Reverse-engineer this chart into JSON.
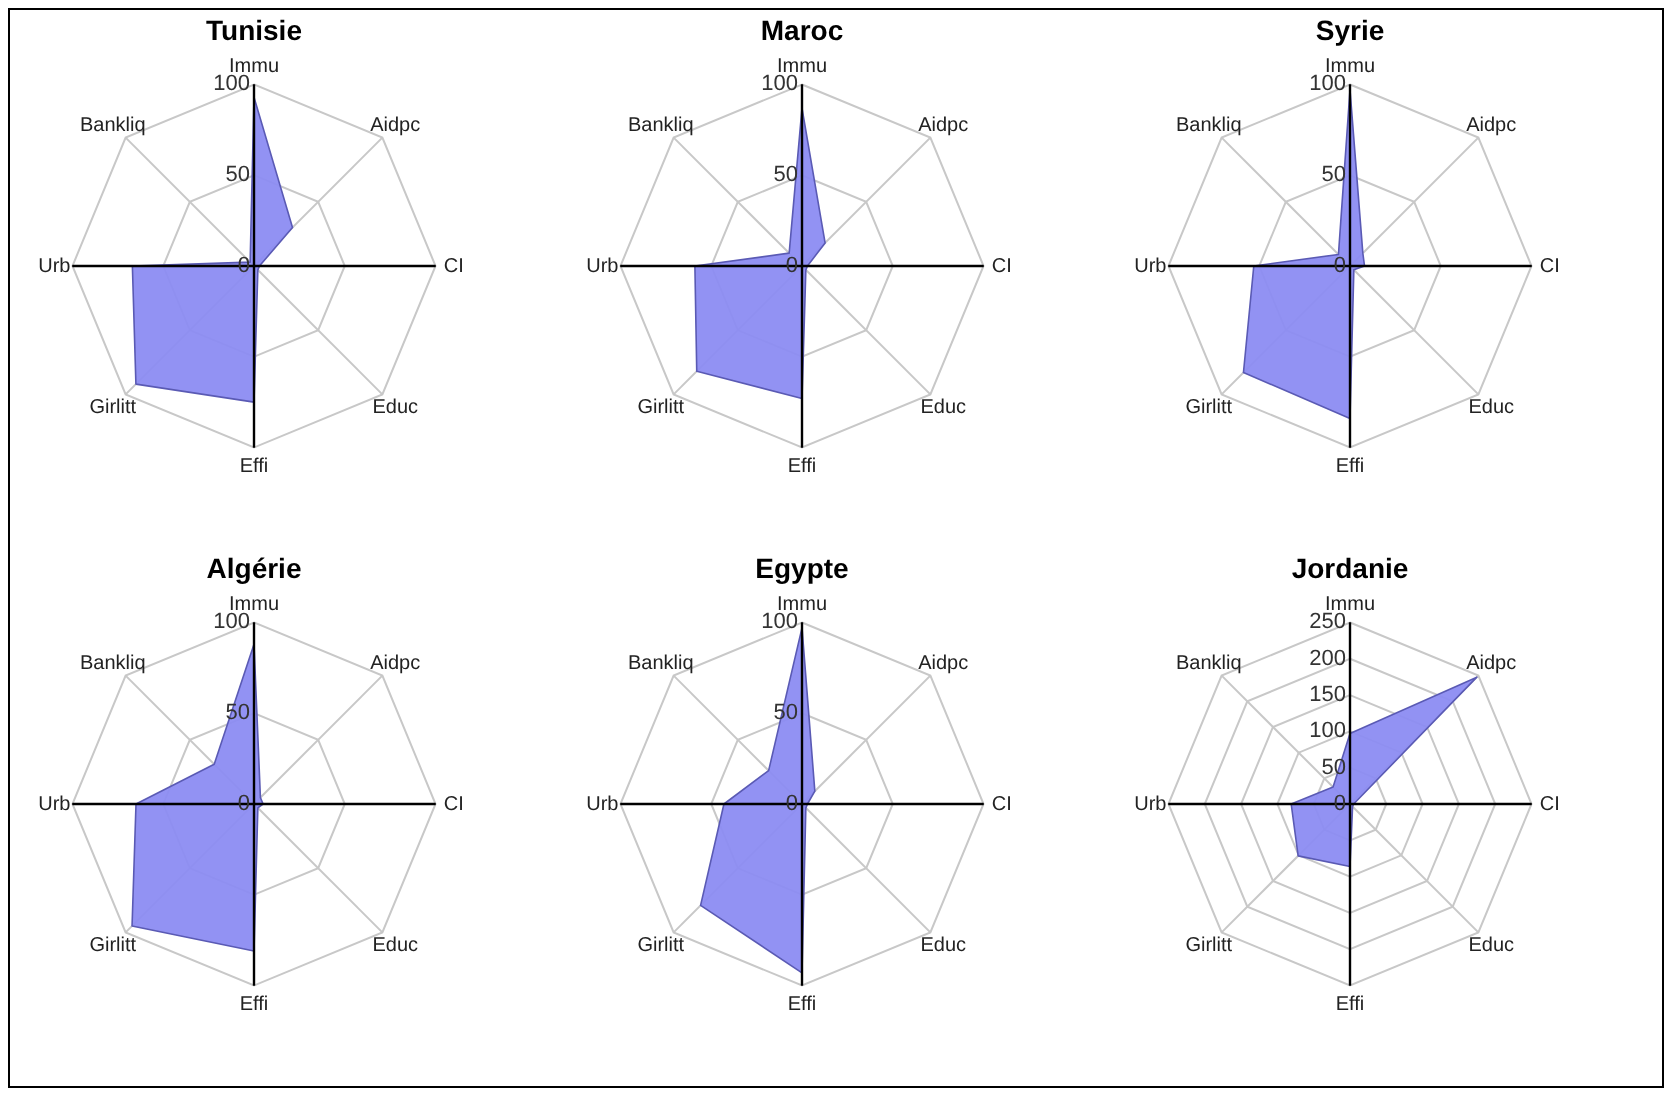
{
  "chart_data": [
    {
      "type": "radar",
      "title": "Tunisie",
      "categories": [
        "Immu",
        "Aidpc",
        "CI",
        "Educ",
        "Effi",
        "Girlitt",
        "Urb",
        "Bankliq"
      ],
      "ylim": [
        0,
        100
      ],
      "yticks": [
        0,
        50,
        100
      ],
      "grid": true,
      "series": [
        {
          "color": "#8c8cf2",
          "values": [
            93,
            30,
            3,
            3,
            75,
            92,
            67,
            3
          ]
        }
      ]
    },
    {
      "type": "radar",
      "title": "Maroc",
      "categories": [
        "Immu",
        "Aidpc",
        "CI",
        "Educ",
        "Effi",
        "Girlitt",
        "Urb",
        "Bankliq"
      ],
      "ylim": [
        0,
        100
      ],
      "yticks": [
        0,
        50,
        100
      ],
      "grid": true,
      "series": [
        {
          "color": "#8c8cf2",
          "values": [
            87,
            18,
            3,
            3,
            73,
            82,
            59,
            10
          ]
        }
      ]
    },
    {
      "type": "radar",
      "title": "Syrie",
      "categories": [
        "Immu",
        "Aidpc",
        "CI",
        "Educ",
        "Effi",
        "Girlitt",
        "Urb",
        "Bankliq"
      ],
      "ylim": [
        0,
        100
      ],
      "yticks": [
        0,
        50,
        100
      ],
      "grid": true,
      "series": [
        {
          "color": "#8c8cf2",
          "values": [
            97,
            10,
            8,
            3,
            84,
            83,
            53,
            9
          ]
        }
      ]
    },
    {
      "type": "radar",
      "title": "Algérie",
      "categories": [
        "Immu",
        "Aidpc",
        "CI",
        "Educ",
        "Effi",
        "Girlitt",
        "Urb",
        "Bankliq"
      ],
      "ylim": [
        0,
        100
      ],
      "yticks": [
        0,
        50,
        100
      ],
      "grid": true,
      "series": [
        {
          "color": "#8c8cf2",
          "values": [
            88,
            5,
            5,
            3,
            81,
            95,
            65,
            31
          ]
        }
      ]
    },
    {
      "type": "radar",
      "title": "Egypte",
      "categories": [
        "Immu",
        "Aidpc",
        "CI",
        "Educ",
        "Effi",
        "Girlitt",
        "Urb",
        "Bankliq"
      ],
      "ylim": [
        0,
        100
      ],
      "yticks": [
        0,
        50,
        100
      ],
      "grid": true,
      "series": [
        {
          "color": "#8c8cf2",
          "values": [
            97,
            10,
            3,
            3,
            93,
            79,
            43,
            26
          ]
        }
      ]
    },
    {
      "type": "radar",
      "title": "Jordanie",
      "categories": [
        "Immu",
        "Aidpc",
        "CI",
        "Educ",
        "Effi",
        "Girlitt",
        "Urb",
        "Bankliq"
      ],
      "ylim": [
        0,
        250
      ],
      "yticks": [
        0,
        50,
        100,
        150,
        200,
        250
      ],
      "grid": true,
      "series": [
        {
          "color": "#8c8cf2",
          "values": [
            97,
            247,
            5,
            5,
            86,
            101,
            81,
            33
          ]
        }
      ]
    }
  ]
}
